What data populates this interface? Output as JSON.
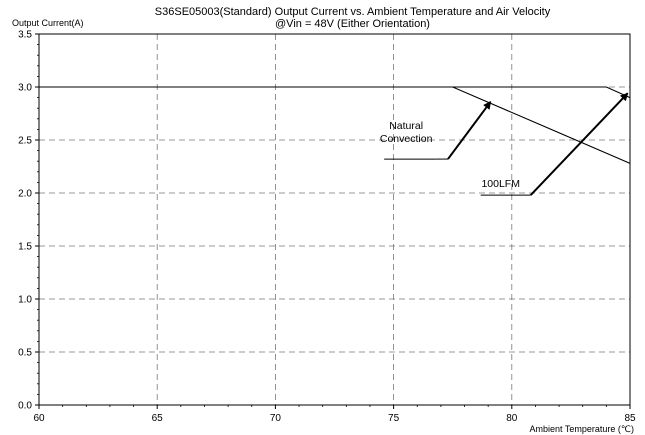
{
  "chart_data": {
    "type": "line",
    "title": "S36SE05003(Standard)  Output Current vs. Ambient Temperature and Air Velocity",
    "subtitle": "@Vin = 48V (Either Orientation)",
    "ylabel": "Output Current(A)",
    "xlabel": "Ambient Temperature (℃)",
    "xlim": [
      60,
      85
    ],
    "ylim": [
      0.0,
      3.5
    ],
    "x_ticks": [
      "60",
      "65",
      "70",
      "75",
      "80",
      "85"
    ],
    "y_ticks": [
      "0.0",
      "0.5",
      "1.0",
      "1.5",
      "2.0",
      "2.5",
      "3.0",
      "3.5"
    ],
    "grid": true,
    "series": [
      {
        "name": "Natural Convection",
        "x": [
          60,
          77.5,
          85
        ],
        "y": [
          3.0,
          3.0,
          2.28
        ]
      },
      {
        "name": "100LFM",
        "x": [
          60,
          84.0,
          85
        ],
        "y": [
          3.0,
          3.0,
          2.9
        ]
      }
    ],
    "annotations": [
      {
        "lines": [
          "Natural",
          "Convection"
        ],
        "anchor": [
          76.8,
          2.32
        ],
        "arrow_from": [
          77.3,
          2.32
        ],
        "arrow_to": [
          79.1,
          2.86
        ]
      },
      {
        "lines": [
          "100LFM"
        ],
        "anchor": [
          80.8,
          1.98
        ],
        "arrow_from": [
          80.8,
          1.98
        ],
        "arrow_to": [
          84.9,
          2.94
        ]
      }
    ]
  }
}
